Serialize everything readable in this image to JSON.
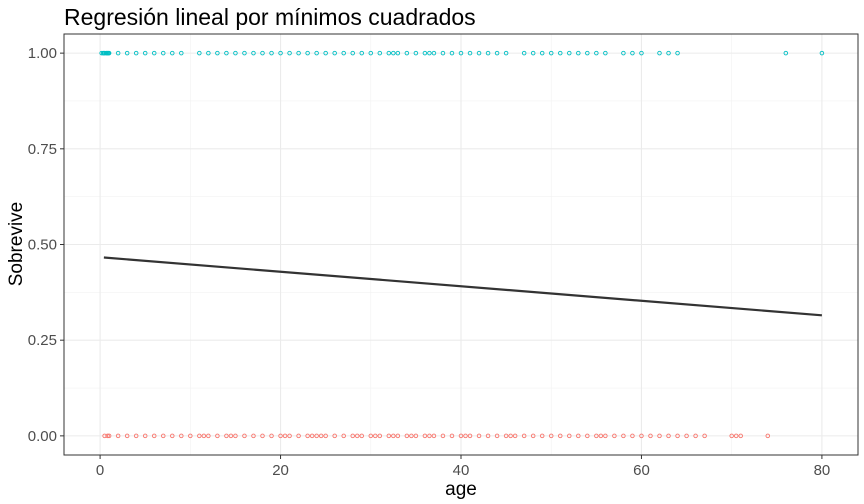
{
  "chart_data": {
    "type": "scatter",
    "title": "Regresión lineal por mínimos cuadrados",
    "xlabel": "age",
    "ylabel": "Sobrevive",
    "xlim": [
      -4,
      84
    ],
    "ylim": [
      -0.05,
      1.05
    ],
    "x_ticks": [
      0,
      20,
      40,
      60,
      80
    ],
    "x_tick_labels": [
      "0",
      "20",
      "40",
      "60",
      "80"
    ],
    "x_minor_ticks": [
      10,
      30,
      50,
      70
    ],
    "y_ticks": [
      0,
      0.25,
      0.5,
      0.75,
      1
    ],
    "y_tick_labels": [
      "0.00",
      "0.25",
      "0.50",
      "0.75",
      "1.00"
    ],
    "y_minor_ticks": [
      0.125,
      0.375,
      0.625,
      0.875
    ],
    "grid": true,
    "legend": "none",
    "series": [
      {
        "kind": "points",
        "color": "#00BFC4",
        "y": 1,
        "x": [
          0.17,
          0.33,
          0.42,
          0.5,
          0.67,
          0.75,
          0.83,
          0.92,
          1,
          2,
          3,
          4,
          5,
          6,
          7,
          8,
          9,
          11,
          12,
          13,
          14,
          15,
          16,
          17,
          18,
          19,
          20,
          21,
          22,
          23,
          24,
          25,
          26,
          27,
          28,
          29,
          30,
          31,
          32,
          32.5,
          33,
          34,
          35,
          36,
          36.5,
          37,
          38,
          39,
          40,
          41,
          42,
          43,
          44,
          45,
          47,
          48,
          49,
          50,
          51,
          52,
          53,
          54,
          55,
          56,
          58,
          59,
          60,
          62,
          63,
          64,
          76,
          80
        ]
      },
      {
        "kind": "points",
        "color": "#F8766D",
        "y": 0,
        "x": [
          0.5,
          0.83,
          1,
          2,
          3,
          4,
          5,
          6,
          7,
          8,
          9,
          10,
          11,
          11.5,
          12,
          13,
          14,
          14.5,
          15,
          16,
          17,
          18,
          19,
          20,
          20.5,
          21,
          22,
          23,
          23.5,
          24,
          24.5,
          25,
          26,
          27,
          28,
          28.5,
          29,
          30,
          30.5,
          31,
          32,
          32.5,
          33,
          34,
          34.5,
          35,
          36,
          36.5,
          37,
          38,
          39,
          40,
          40.5,
          41,
          42,
          43,
          44,
          45,
          45.5,
          46,
          47,
          48,
          49,
          50,
          51,
          52,
          53,
          54,
          55,
          55.5,
          56,
          57,
          58,
          59,
          60,
          61,
          62,
          63,
          64,
          65,
          66,
          67,
          70,
          70.5,
          71,
          74
        ]
      },
      {
        "kind": "line",
        "color": "#333333",
        "x": [
          0.42,
          80
        ],
        "y": [
          0.466,
          0.315
        ]
      }
    ]
  }
}
